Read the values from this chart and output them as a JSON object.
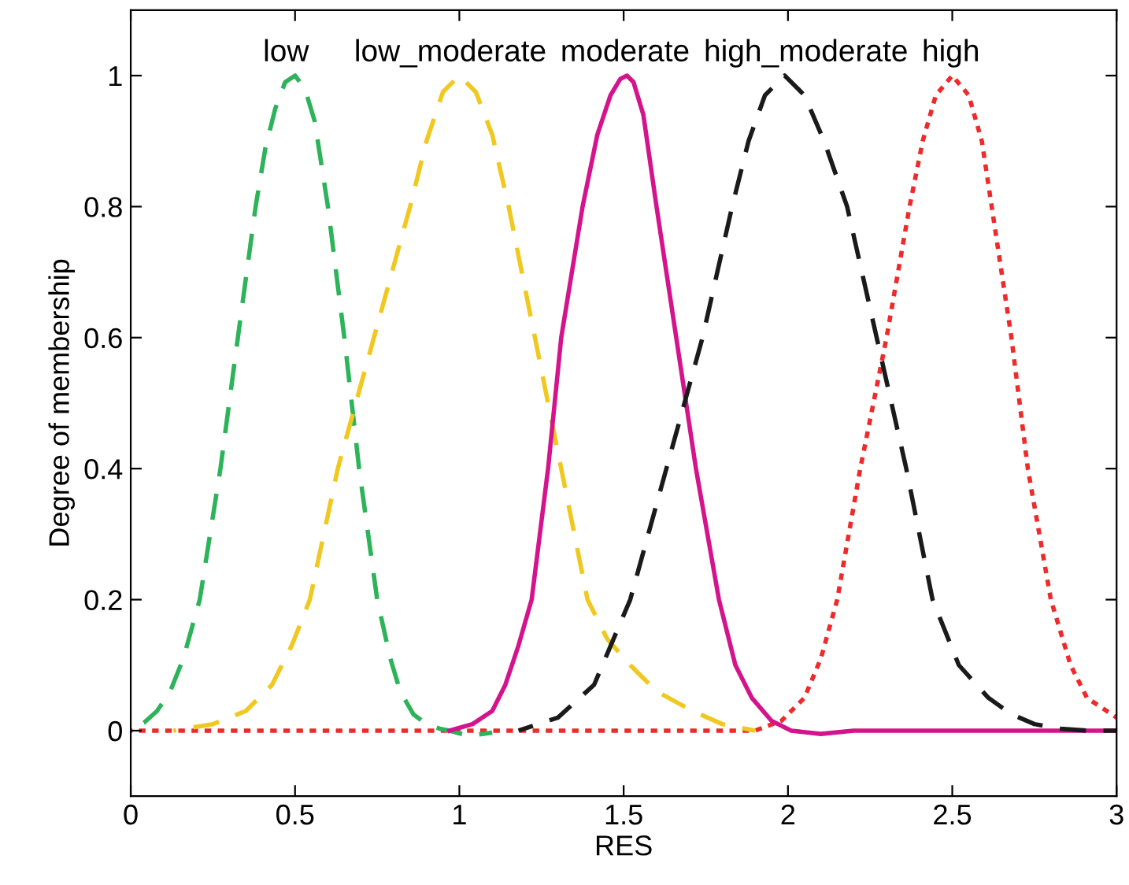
{
  "chart_data": {
    "type": "line",
    "xlabel": "RES",
    "ylabel": "Degree of membership",
    "xlim": [
      0,
      3
    ],
    "xticks": [
      0,
      0.5,
      1,
      1.5,
      2,
      2.5,
      3
    ],
    "ylim": [
      -0.1,
      1.1
    ],
    "yticks": [
      0,
      0.2,
      0.4,
      0.6,
      0.8,
      1
    ],
    "series": [
      {
        "name": "low",
        "color": "#2db35a",
        "line_style": "dashed",
        "x": [
          0,
          0.04,
          0.08,
          0.12,
          0.16,
          0.21,
          0.273,
          0.326,
          0.38,
          0.41,
          0.44,
          0.47,
          0.5,
          0.53,
          0.56,
          0.6,
          0.65,
          0.695,
          0.75,
          0.79,
          0.82,
          0.86,
          0.9,
          0.94,
          0.97,
          1.03,
          1.1
        ],
        "values": [
          0.005,
          0.012,
          0.03,
          0.06,
          0.11,
          0.2,
          0.4,
          0.6,
          0.8,
          0.89,
          0.95,
          0.99,
          1.0,
          0.98,
          0.93,
          0.8,
          0.6,
          0.4,
          0.2,
          0.11,
          0.06,
          0.025,
          0.01,
          0.003,
          0,
          -0.008,
          -0.003
        ]
      },
      {
        "name": "low_moderate",
        "color": "#f0c820",
        "line_style": "dashed",
        "x": [
          0.13,
          0.25,
          0.35,
          0.43,
          0.49,
          0.545,
          0.63,
          0.74,
          0.85,
          0.9,
          0.95,
          1.0,
          1.05,
          1.1,
          1.15,
          1.23,
          1.31,
          1.39,
          1.45,
          1.52,
          1.6,
          1.71,
          1.8,
          1.9
        ],
        "values": [
          0,
          0.01,
          0.03,
          0.07,
          0.13,
          0.2,
          0.4,
          0.6,
          0.8,
          0.9,
          0.975,
          1.0,
          0.975,
          0.91,
          0.8,
          0.6,
          0.4,
          0.2,
          0.14,
          0.1,
          0.06,
          0.03,
          0.01,
          0
        ]
      },
      {
        "name": "moderate",
        "color": "#d4148c",
        "line_style": "solid",
        "x": [
          0.97,
          1.04,
          1.1,
          1.14,
          1.18,
          1.22,
          1.27,
          1.31,
          1.375,
          1.42,
          1.46,
          1.49,
          1.51,
          1.53,
          1.56,
          1.6,
          1.66,
          1.72,
          1.79,
          1.84,
          1.89,
          1.95,
          2.01,
          2.1,
          2.2,
          3
        ],
        "values": [
          0,
          0.01,
          0.03,
          0.07,
          0.13,
          0.2,
          0.4,
          0.6,
          0.8,
          0.91,
          0.97,
          0.995,
          1.0,
          0.99,
          0.94,
          0.8,
          0.6,
          0.4,
          0.2,
          0.1,
          0.05,
          0.015,
          0,
          -0.005,
          0,
          0
        ]
      },
      {
        "name": "high_moderate",
        "color": "#1a1a1a",
        "line_style": "dashed",
        "x": [
          1.18,
          1.3,
          1.41,
          1.52,
          1.63,
          1.74,
          1.83,
          1.88,
          1.93,
          1.99,
          2.05,
          2.11,
          2.18,
          2.27,
          2.36,
          2.44,
          2.52,
          2.61,
          2.68,
          2.75,
          2.83,
          2.91,
          3
        ],
        "values": [
          0,
          0.02,
          0.07,
          0.2,
          0.4,
          0.6,
          0.8,
          0.9,
          0.97,
          1.0,
          0.97,
          0.9,
          0.8,
          0.6,
          0.4,
          0.2,
          0.1,
          0.05,
          0.025,
          0.01,
          0.003,
          0,
          0
        ]
      },
      {
        "name": "high",
        "color": "#ee2a2a",
        "line_style": "dotted",
        "x": [
          0,
          1.9,
          1.98,
          2.05,
          2.1,
          2.15,
          2.22,
          2.3,
          2.37,
          2.41,
          2.45,
          2.5,
          2.55,
          2.59,
          2.62,
          2.68,
          2.73,
          2.8,
          2.86,
          2.91,
          3
        ],
        "values": [
          0,
          0,
          0.015,
          0.05,
          0.11,
          0.2,
          0.4,
          0.6,
          0.8,
          0.9,
          0.97,
          1.0,
          0.97,
          0.9,
          0.8,
          0.6,
          0.4,
          0.2,
          0.1,
          0.05,
          0.02
        ]
      }
    ]
  }
}
